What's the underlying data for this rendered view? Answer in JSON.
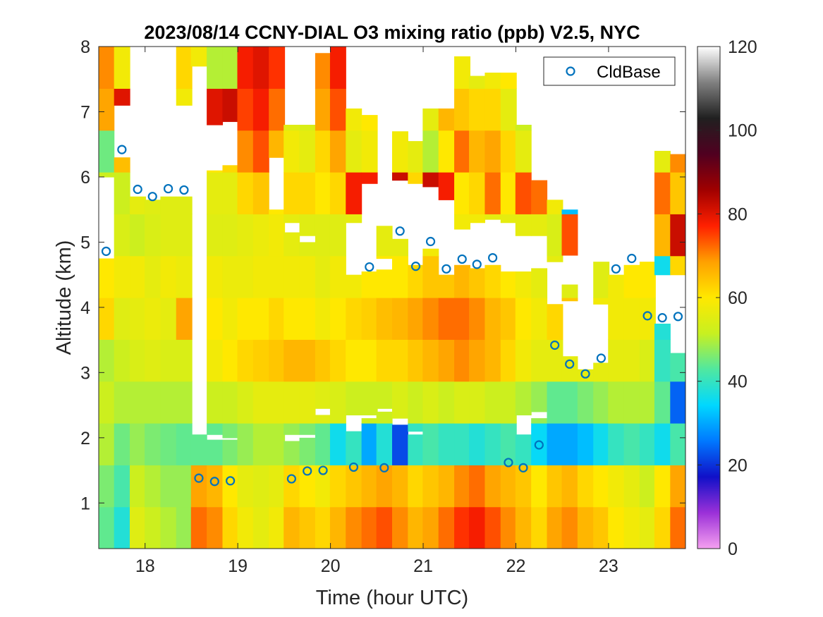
{
  "chart_data": {
    "type": "heatmap",
    "title": "2023/08/14 CCNY-DIAL O3 mixing ratio (ppb) V2.5, NYC",
    "xlabel": "Time (hour UTC)",
    "ylabel": "Altitude (km)",
    "xlim": [
      17.5,
      23.83
    ],
    "ylim": [
      0.3,
      8
    ],
    "x_ticks": [
      18,
      19,
      20,
      21,
      22,
      23
    ],
    "x_tick_labels": [
      "18",
      "19",
      "20",
      "21",
      "22",
      "23"
    ],
    "y_ticks": [
      1,
      2,
      3,
      4,
      5,
      6,
      7,
      8
    ],
    "y_tick_labels": [
      "1",
      "2",
      "3",
      "4",
      "5",
      "6",
      "7",
      "8"
    ],
    "colorbar": {
      "range": [
        0,
        120
      ],
      "ticks": [
        0,
        20,
        40,
        60,
        80,
        100,
        120
      ],
      "tick_labels": [
        "0",
        "20",
        "40",
        "60",
        "80",
        "100",
        "120"
      ],
      "colormap": [
        "#f5a0f0",
        "#9b30d8",
        "#1010c8",
        "#0078ff",
        "#00d8ff",
        "#50e8a0",
        "#c8f020",
        "#ffe800",
        "#ffa000",
        "#ff2000",
        "#a00000",
        "#500020",
        "#202020",
        "#808080",
        "#ffffff"
      ]
    },
    "legend": {
      "entries": [
        "CldBase"
      ],
      "placement": "top-right"
    },
    "grid": false,
    "profile_times": [
      17.58,
      17.75,
      17.92,
      18.08,
      18.25,
      18.42,
      18.58,
      18.75,
      18.92,
      19.08,
      19.25,
      19.42,
      19.58,
      19.75,
      19.92,
      20.08,
      20.25,
      20.42,
      20.58,
      20.75,
      20.92,
      21.08,
      21.25,
      21.42,
      21.58,
      21.75,
      21.92,
      22.08,
      22.25,
      22.42,
      22.58,
      22.75,
      22.92,
      23.08,
      23.25,
      23.42,
      23.58,
      23.75
    ],
    "valid_ranges_km": [
      [
        [
          0.3,
          4.75
        ],
        [
          6.0,
          8.0
        ]
      ],
      [
        [
          0.3,
          6.3
        ],
        [
          7.1,
          8.0
        ]
      ],
      [
        [
          0.3,
          5.7
        ]
      ],
      [
        [
          0.3,
          5.65
        ]
      ],
      [
        [
          0.3,
          5.7
        ]
      ],
      [
        [
          0.3,
          5.7
        ],
        [
          7.1,
          8.0
        ]
      ],
      [
        [
          0.3,
          2.05
        ],
        [
          7.7,
          8.0
        ]
      ],
      [
        [
          0.3,
          1.97
        ],
        [
          2.05,
          6.1
        ],
        [
          6.8,
          8.0
        ]
      ],
      [
        [
          0.3,
          1.97
        ],
        [
          2.0,
          6.18
        ],
        [
          6.85,
          8.0
        ]
      ],
      [
        [
          0.3,
          8.0
        ]
      ],
      [
        [
          0.3,
          8.0
        ]
      ],
      [
        [
          0.3,
          5.5
        ],
        [
          6.3,
          8.0
        ]
      ],
      [
        [
          0.3,
          1.95
        ],
        [
          2.05,
          5.15
        ],
        [
          5.3,
          6.8
        ]
      ],
      [
        [
          0.3,
          2.0
        ],
        [
          2.05,
          5.0
        ],
        [
          5.1,
          6.8
        ]
      ],
      [
        [
          0.3,
          2.35
        ],
        [
          2.45,
          7.9
        ]
      ],
      [
        [
          0.3,
          8.0
        ]
      ],
      [
        [
          0.3,
          2.1
        ],
        [
          2.35,
          4.5
        ],
        [
          5.3,
          7.05
        ]
      ],
      [
        [
          0.3,
          2.3
        ],
        [
          2.35,
          4.55
        ],
        [
          5.9,
          6.95
        ]
      ],
      [
        [
          0.3,
          2.4
        ],
        [
          2.45,
          4.58
        ],
        [
          4.75,
          5.25
        ]
      ],
      [
        [
          0.3,
          2.2
        ],
        [
          2.3,
          5.05
        ],
        [
          5.95,
          6.7
        ]
      ],
      [
        [
          0.3,
          2.05
        ],
        [
          2.1,
          4.65
        ],
        [
          5.9,
          6.55
        ]
      ],
      [
        [
          0.3,
          4.9
        ],
        [
          5.85,
          7.05
        ]
      ],
      [
        [
          0.3,
          4.5
        ],
        [
          5.65,
          7.05
        ]
      ],
      [
        [
          0.3,
          4.65
        ],
        [
          5.2,
          7.85
        ]
      ],
      [
        [
          0.3,
          4.6
        ],
        [
          5.3,
          7.55
        ]
      ],
      [
        [
          0.3,
          4.65
        ],
        [
          5.35,
          7.6
        ]
      ],
      [
        [
          0.3,
          4.55
        ],
        [
          5.3,
          7.6
        ]
      ],
      [
        [
          0.3,
          2.05
        ],
        [
          2.35,
          4.55
        ],
        [
          5.1,
          6.8
        ]
      ],
      [
        [
          0.3,
          2.3
        ],
        [
          2.4,
          4.6
        ],
        [
          5.1,
          5.95
        ]
      ],
      [
        [
          0.3,
          4.05
        ],
        [
          4.7,
          5.65
        ]
      ],
      [
        [
          0.3,
          3.25
        ],
        [
          4.1,
          4.35
        ],
        [
          4.8,
          5.5
        ]
      ],
      [
        [
          0.3,
          3.05
        ]
      ],
      [
        [
          0.3,
          3.15
        ],
        [
          4.05,
          4.7
        ]
      ],
      [
        [
          0.3,
          4.5
        ]
      ],
      [
        [
          0.3,
          4.65
        ]
      ],
      [
        [
          0.3,
          4.7
        ]
      ],
      [
        [
          0.3,
          3.75
        ],
        [
          4.5,
          6.4
        ]
      ],
      [
        [
          0.3,
          3.3
        ],
        [
          4.5,
          6.35
        ]
      ]
    ],
    "o3_ppb": [
      [
        44,
        46,
        50,
        52,
        50,
        62,
        60,
        55,
        52,
        45,
        68,
        70
      ],
      [
        38,
        42,
        45,
        50,
        52,
        55,
        58,
        54,
        52,
        65,
        80,
        58
      ],
      [
        55,
        52,
        48,
        50,
        54,
        56,
        58,
        52,
        56,
        82,
        56,
        56
      ],
      [
        52,
        50,
        46,
        50,
        55,
        57,
        56,
        54,
        55,
        80,
        56,
        56
      ],
      [
        50,
        48,
        45,
        50,
        54,
        56,
        58,
        55,
        55,
        78,
        56,
        56
      ],
      [
        48,
        48,
        44,
        50,
        54,
        68,
        57,
        55,
        55,
        76,
        58,
        62
      ],
      [
        72,
        68,
        44,
        52,
        55,
        67,
        58,
        55,
        55,
        55,
        56,
        58
      ],
      [
        70,
        66,
        44,
        52,
        58,
        60,
        58,
        55,
        56,
        60,
        80,
        50
      ],
      [
        62,
        60,
        46,
        52,
        60,
        58,
        57,
        55,
        56,
        62,
        82,
        50
      ],
      [
        58,
        56,
        48,
        54,
        62,
        60,
        57,
        56,
        62,
        70,
        75,
        78
      ],
      [
        56,
        55,
        50,
        56,
        63,
        60,
        58,
        57,
        64,
        74,
        78,
        80
      ],
      [
        58,
        56,
        50,
        56,
        64,
        62,
        58,
        58,
        60,
        66,
        72,
        76
      ],
      [
        66,
        62,
        48,
        56,
        66,
        60,
        58,
        56,
        62,
        58,
        55,
        52
      ],
      [
        64,
        60,
        46,
        56,
        66,
        60,
        58,
        55,
        62,
        56,
        54,
        52
      ],
      [
        62,
        58,
        44,
        55,
        64,
        58,
        56,
        55,
        60,
        62,
        68,
        70
      ],
      [
        66,
        62,
        36,
        54,
        62,
        60,
        58,
        55,
        62,
        68,
        74,
        78
      ],
      [
        70,
        64,
        40,
        52,
        60,
        62,
        58,
        56,
        78,
        56,
        58,
        52
      ],
      [
        72,
        66,
        30,
        52,
        60,
        63,
        60,
        56,
        78,
        58,
        60,
        56
      ],
      [
        74,
        68,
        38,
        52,
        62,
        65,
        60,
        56,
        76,
        90,
        52,
        52
      ],
      [
        70,
        66,
        22,
        54,
        62,
        66,
        60,
        56,
        82,
        58,
        62,
        58
      ],
      [
        66,
        62,
        40,
        52,
        64,
        68,
        62,
        56,
        62,
        56,
        60,
        56
      ],
      [
        68,
        64,
        42,
        54,
        66,
        70,
        64,
        58,
        82,
        50,
        56,
        48
      ],
      [
        72,
        66,
        40,
        52,
        68,
        72,
        64,
        58,
        78,
        60,
        66,
        62
      ],
      [
        76,
        70,
        40,
        54,
        70,
        72,
        66,
        58,
        60,
        72,
        64,
        58
      ],
      [
        78,
        72,
        38,
        54,
        68,
        70,
        64,
        58,
        62,
        66,
        62,
        56
      ],
      [
        74,
        68,
        40,
        52,
        66,
        66,
        62,
        56,
        72,
        68,
        62,
        58
      ],
      [
        70,
        66,
        42,
        52,
        62,
        64,
        60,
        56,
        60,
        62,
        56,
        60
      ],
      [
        66,
        64,
        40,
        50,
        58,
        60,
        58,
        56,
        74,
        56,
        52,
        58
      ],
      [
        62,
        60,
        35,
        48,
        56,
        58,
        56,
        56,
        72,
        86,
        82,
        38
      ],
      [
        68,
        64,
        30,
        44,
        56,
        62,
        56,
        54,
        58,
        82,
        78,
        60
      ],
      [
        70,
        66,
        30,
        44,
        56,
        64,
        55,
        74,
        32,
        40,
        90,
        40
      ],
      [
        66,
        62,
        32,
        46,
        56,
        60,
        54,
        58,
        58,
        58,
        58,
        58
      ],
      [
        64,
        60,
        36,
        48,
        56,
        58,
        55,
        60,
        64,
        52,
        58,
        62
      ],
      [
        60,
        58,
        40,
        50,
        56,
        58,
        58,
        60,
        62,
        80,
        60,
        60
      ],
      [
        58,
        56,
        42,
        50,
        56,
        58,
        60,
        62,
        66,
        78,
        60,
        60
      ],
      [
        56,
        52,
        40,
        50,
        54,
        58,
        60,
        62,
        64,
        70,
        58,
        58
      ],
      [
        62,
        60,
        36,
        44,
        40,
        38,
        36,
        66,
        72,
        56,
        38,
        32
      ],
      [
        72,
        68,
        42,
        24,
        42,
        62,
        62,
        82,
        64,
        70,
        80,
        90
      ]
    ],
    "cld_base_x": [
      17.58,
      17.75,
      17.92,
      18.08,
      18.25,
      18.42,
      18.58,
      18.75,
      18.92,
      19.58,
      19.75,
      19.92,
      20.25,
      20.42,
      20.58,
      20.75,
      20.92,
      21.08,
      21.25,
      21.42,
      21.58,
      21.75,
      21.92,
      22.08,
      22.25,
      22.42,
      22.58,
      22.75,
      22.92,
      23.08,
      23.25,
      23.42,
      23.58,
      23.75
    ],
    "cld_base_km": [
      4.86,
      6.42,
      5.81,
      5.7,
      5.82,
      5.8,
      1.38,
      1.33,
      1.34,
      1.37,
      1.49,
      1.5,
      1.55,
      4.62,
      1.54,
      5.17,
      4.63,
      5.01,
      4.59,
      4.74,
      4.66,
      4.76,
      1.62,
      1.54,
      1.89,
      3.42,
      3.13,
      2.98,
      3.22,
      4.59,
      4.75,
      3.87,
      3.84,
      3.86
    ]
  }
}
